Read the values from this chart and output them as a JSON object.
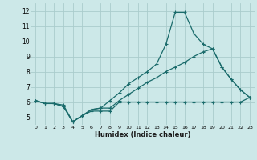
{
  "title": "",
  "xlabel": "Humidex (Indice chaleur)",
  "ylabel": "",
  "bg_color": "#cce8e8",
  "grid_color": "#aacccc",
  "line_color": "#1a6b6b",
  "x_ticks": [
    0,
    1,
    2,
    3,
    4,
    5,
    6,
    7,
    8,
    9,
    10,
    11,
    12,
    13,
    14,
    15,
    16,
    17,
    18,
    19,
    20,
    21,
    22,
    23
  ],
  "y_ticks": [
    5,
    6,
    7,
    8,
    9,
    10,
    11,
    12
  ],
  "xlim": [
    -0.5,
    23.5
  ],
  "ylim": [
    4.5,
    12.5
  ],
  "series": [
    {
      "x": [
        0,
        1,
        2,
        3,
        4,
        5,
        6,
        7,
        8,
        9,
        10,
        11,
        12,
        13,
        14,
        15,
        16,
        17,
        18,
        19,
        20,
        21,
        22,
        23
      ],
      "y": [
        6.1,
        5.9,
        5.9,
        5.7,
        4.7,
        5.1,
        5.4,
        5.4,
        5.4,
        6.0,
        6.0,
        6.0,
        6.0,
        6.0,
        6.0,
        6.0,
        6.0,
        6.0,
        6.0,
        6.0,
        6.0,
        6.0,
        6.0,
        6.3
      ]
    },
    {
      "x": [
        0,
        1,
        2,
        3,
        4,
        5,
        6,
        7,
        8,
        9,
        10,
        11,
        12,
        13,
        14,
        15,
        16,
        17,
        18,
        19,
        20,
        21,
        22,
        23
      ],
      "y": [
        6.1,
        5.9,
        5.9,
        5.8,
        4.7,
        5.1,
        5.5,
        5.6,
        5.6,
        6.1,
        6.5,
        6.9,
        7.3,
        7.6,
        8.0,
        8.3,
        8.6,
        9.0,
        9.3,
        9.5,
        8.3,
        7.5,
        6.8,
        6.3
      ]
    },
    {
      "x": [
        0,
        1,
        2,
        3,
        4,
        5,
        6,
        7,
        8,
        9,
        10,
        11,
        12,
        13,
        14,
        15,
        16,
        17,
        18,
        19,
        20,
        21,
        22,
        23
      ],
      "y": [
        6.1,
        5.9,
        5.9,
        5.7,
        4.7,
        5.1,
        5.5,
        5.6,
        6.1,
        6.6,
        7.2,
        7.6,
        8.0,
        8.5,
        9.8,
        11.9,
        11.9,
        10.5,
        9.8,
        9.5,
        8.3,
        7.5,
        6.8,
        6.3
      ]
    }
  ]
}
